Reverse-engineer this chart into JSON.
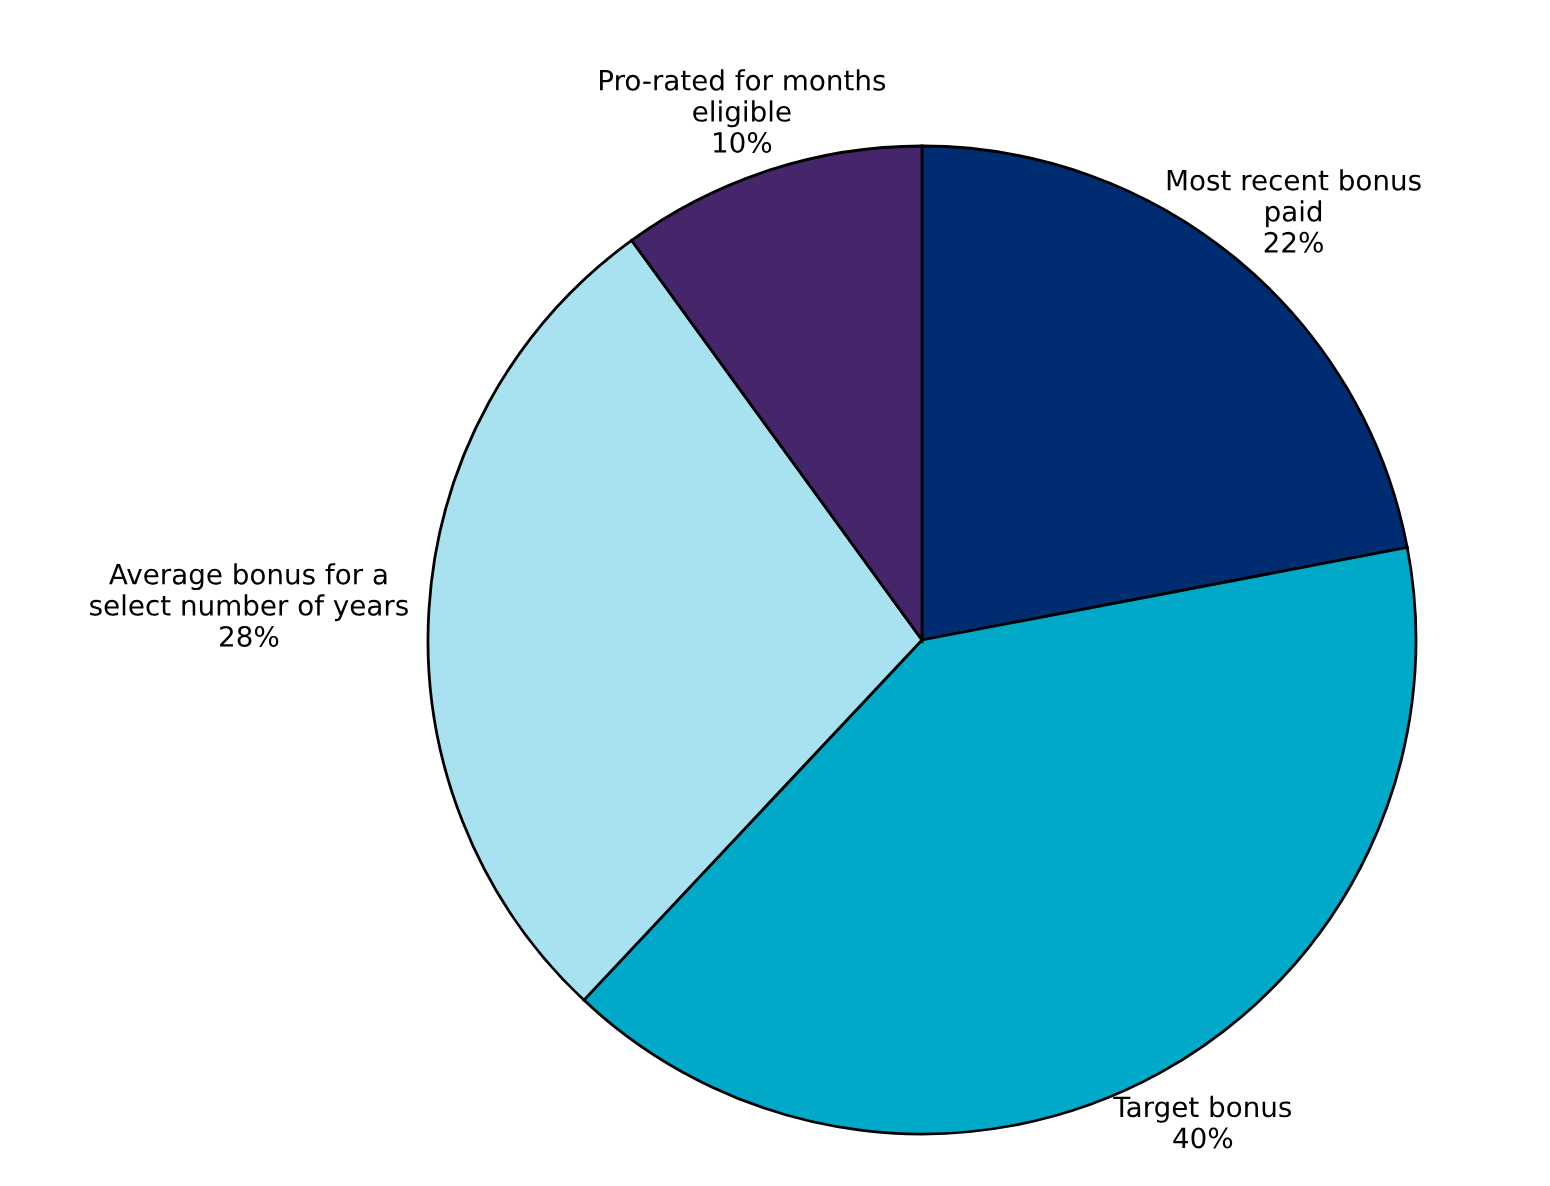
{
  "chart_data": {
    "type": "pie",
    "categories": [
      "Most recent bonus\npaid",
      "Target bonus",
      "Average bonus for a\nselect number of years",
      "Pro-rated for months\neligible"
    ],
    "values": [
      22,
      40,
      28,
      10
    ],
    "value_labels": [
      "22%",
      "40%",
      "28%",
      "10%"
    ],
    "colors": [
      "#002d72",
      "#00a9c8",
      "#a8e1f0",
      "#45266a"
    ]
  }
}
